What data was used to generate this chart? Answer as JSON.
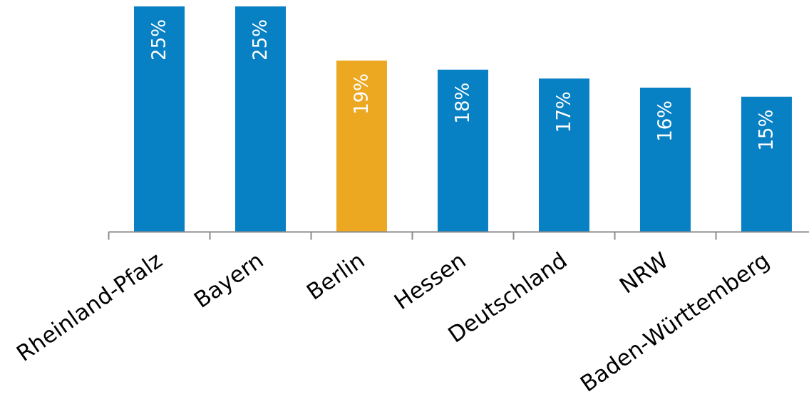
{
  "chart_data": {
    "type": "bar",
    "categories": [
      "Rheinland-Pfalz",
      "Bayern",
      "Berlin",
      "Hessen",
      "Deutschland",
      "NRW",
      "Baden-Württemberg"
    ],
    "values": [
      25,
      25,
      19,
      18,
      17,
      16,
      15
    ],
    "colors": [
      "#0780c4",
      "#0780c4",
      "#eda821",
      "#0780c4",
      "#0780c4",
      "#0780c4",
      "#0780c4"
    ],
    "value_labels": [
      "25%",
      "25%",
      "19%",
      "18%",
      "17%",
      "16%",
      "15%"
    ]
  }
}
